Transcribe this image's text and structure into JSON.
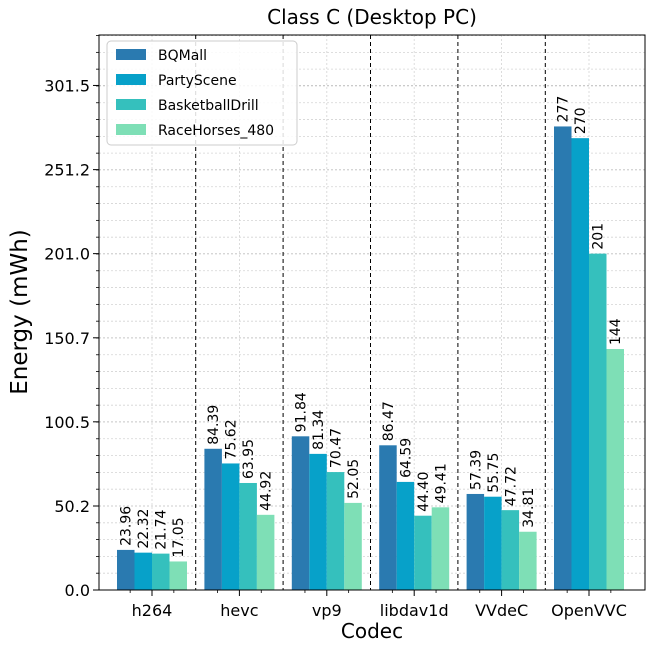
{
  "chart_data": {
    "type": "bar",
    "title": "Class C (Desktop PC)",
    "xlabel": "Codec",
    "ylabel": "Energy (mWh)",
    "categories": [
      "h264",
      "hevc",
      "vp9",
      "libdav1d",
      "VVdeC",
      "OpenVVC"
    ],
    "series": [
      {
        "name": "BQMall",
        "color": "#2a7ab0",
        "values": [
          23.96,
          84.39,
          91.84,
          86.47,
          57.39,
          277
        ],
        "labels": [
          "23.96",
          "84.39",
          "91.84",
          "86.47",
          "57.39",
          "277"
        ]
      },
      {
        "name": "PartyScene",
        "color": "#07a1c9",
        "values": [
          22.32,
          75.62,
          81.34,
          64.59,
          55.75,
          270
        ],
        "labels": [
          "22.32",
          "75.62",
          "81.34",
          "64.59",
          "55.75",
          "270"
        ]
      },
      {
        "name": "BasketballDrill",
        "color": "#35c0bd",
        "values": [
          21.74,
          63.95,
          70.47,
          44.4,
          47.72,
          201
        ],
        "labels": [
          "21.74",
          "63.95",
          "70.47",
          "44.40",
          "47.72",
          "201"
        ]
      },
      {
        "name": "RaceHorses_480",
        "color": "#7edfb6",
        "values": [
          17.05,
          44.92,
          52.05,
          49.41,
          34.81,
          144
        ],
        "labels": [
          "17.05",
          "44.92",
          "52.05",
          "49.41",
          "34.81",
          "144"
        ]
      }
    ],
    "yticks": [
      0.0,
      50.2,
      100.5,
      150.7,
      201.0,
      251.2,
      301.5
    ],
    "ytick_labels": [
      "0.0",
      "50.2",
      "100.5",
      "150.7",
      "201.0",
      "251.2",
      "301.5"
    ],
    "ylim": [
      0,
      331.65
    ],
    "legend_position": "top-left",
    "grid": true,
    "minor_grid": true,
    "group_separators": true
  }
}
